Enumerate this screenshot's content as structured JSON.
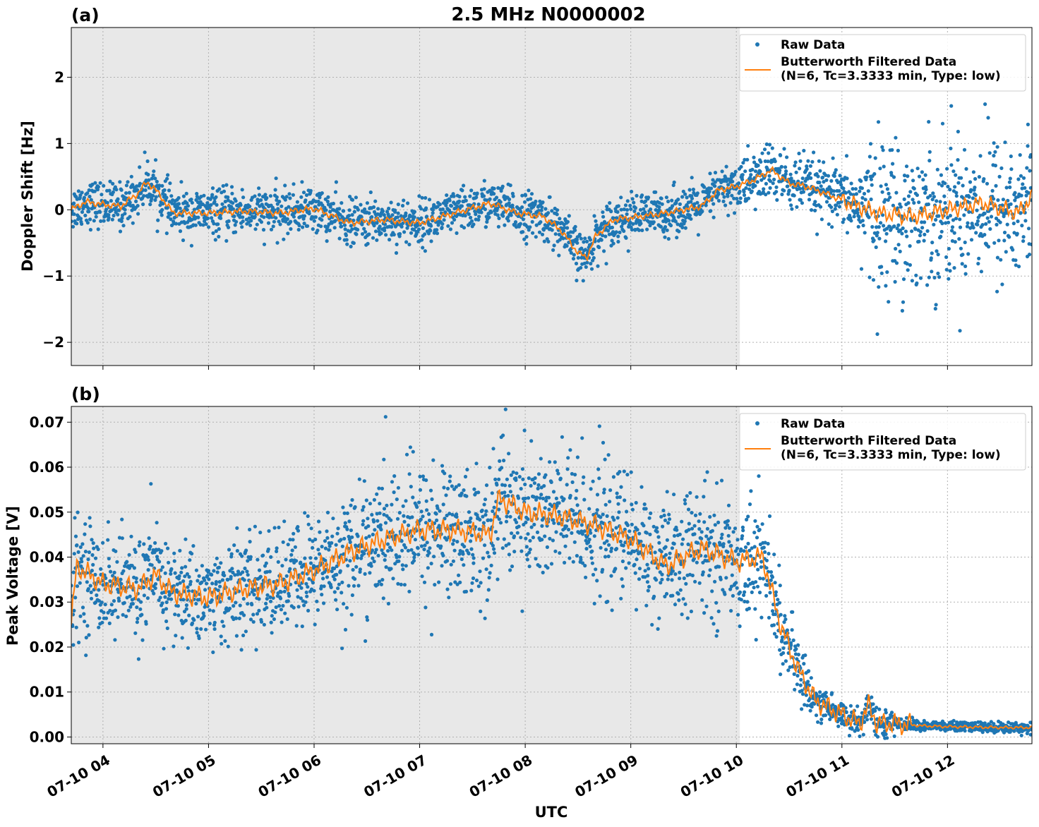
{
  "title": "2.5 MHz N0000002",
  "xlabel": "UTC",
  "colors": {
    "raw": "#1f77b4",
    "filtered": "#ff7f0e",
    "shade": "#e8e8e8",
    "grid": "#b0b0b0"
  },
  "chart_data": [
    {
      "type": "scatter",
      "panel": "(a)",
      "ylabel": "Doppler Shift [Hz]",
      "ylim": [
        -2.35,
        2.75
      ],
      "yticks": [
        2,
        1,
        0,
        -1,
        -2
      ],
      "ytick_labels": [
        "2",
        "1",
        "0",
        "−1",
        "−2"
      ],
      "xlim": [
        "07-10 03:42",
        "07-10 12:48"
      ],
      "xticks": [
        "07-10 04:00",
        "07-10 05:00",
        "07-10 06:00",
        "07-10 07:00",
        "07-10 08:00",
        "07-10 09:00",
        "07-10 10:00",
        "07-10 11:00",
        "07-10 12:00"
      ],
      "shaded_region": [
        "07-10 03:42",
        "07-10 10:02"
      ],
      "grid": true,
      "legend_position": "top-right",
      "legend": [
        {
          "label": "Raw Data",
          "kind": "marker"
        },
        {
          "label": "Butterworth Filtered Data",
          "label2": "(N=6, Tc=3.3333 min, Type: low)",
          "kind": "line"
        }
      ],
      "series": [
        {
          "name": "Butterworth Filtered Data",
          "x": [
            "07-10 03:42",
            "07-10 03:50",
            "07-10 04:00",
            "07-10 04:10",
            "07-10 04:20",
            "07-10 04:25",
            "07-10 04:30",
            "07-10 04:40",
            "07-10 05:00",
            "07-10 05:20",
            "07-10 05:40",
            "07-10 06:00",
            "07-10 06:20",
            "07-10 06:40",
            "07-10 07:00",
            "07-10 07:20",
            "07-10 07:40",
            "07-10 07:55",
            "07-10 08:10",
            "07-10 08:20",
            "07-10 08:30",
            "07-10 08:35",
            "07-10 08:40",
            "07-10 08:50",
            "07-10 09:00",
            "07-10 09:20",
            "07-10 09:40",
            "07-10 09:50",
            "07-10 10:00",
            "07-10 10:10",
            "07-10 10:20",
            "07-10 10:30",
            "07-10 10:40",
            "07-10 11:00",
            "07-10 11:20",
            "07-10 11:40",
            "07-10 12:00",
            "07-10 12:20",
            "07-10 12:40",
            "07-10 12:48"
          ],
          "y": [
            0.0,
            0.12,
            0.08,
            0.05,
            0.25,
            0.42,
            0.3,
            -0.05,
            -0.05,
            -0.02,
            -0.05,
            0.02,
            -0.2,
            -0.15,
            -0.2,
            -0.05,
            0.1,
            -0.05,
            -0.1,
            -0.3,
            -0.65,
            -0.72,
            -0.4,
            -0.15,
            -0.12,
            -0.05,
            0.05,
            0.3,
            0.35,
            0.45,
            0.6,
            0.4,
            0.35,
            0.15,
            -0.05,
            -0.1,
            0.0,
            0.1,
            -0.05,
            0.2
          ]
        }
      ]
    },
    {
      "type": "scatter",
      "panel": "(b)",
      "ylabel": "Peak Voltage [V]",
      "ylim": [
        -0.0015,
        0.0735
      ],
      "yticks": [
        0.07,
        0.06,
        0.05,
        0.04,
        0.03,
        0.02,
        0.01,
        0.0
      ],
      "ytick_labels": [
        "0.07",
        "0.06",
        "0.05",
        "0.04",
        "0.03",
        "0.02",
        "0.01",
        "0.00"
      ],
      "xlim": [
        "07-10 03:42",
        "07-10 12:48"
      ],
      "xticks": [
        "07-10 04:00",
        "07-10 05:00",
        "07-10 06:00",
        "07-10 07:00",
        "07-10 08:00",
        "07-10 09:00",
        "07-10 10:00",
        "07-10 11:00",
        "07-10 12:00"
      ],
      "xtick_labels": [
        "07-10 04",
        "07-10 05",
        "07-10 06",
        "07-10 07",
        "07-10 08",
        "07-10 09",
        "07-10 10",
        "07-10 11",
        "07-10 12"
      ],
      "shaded_region": [
        "07-10 03:42",
        "07-10 10:02"
      ],
      "grid": true,
      "legend_position": "top-right",
      "legend": [
        {
          "label": "Raw Data",
          "kind": "marker"
        },
        {
          "label": "Butterworth Filtered Data",
          "label2": "(N=6, Tc=3.3333 min, Type: low)",
          "kind": "line"
        }
      ],
      "series": [
        {
          "name": "Butterworth Filtered Data",
          "x": [
            "07-10 03:42",
            "07-10 03:45",
            "07-10 04:00",
            "07-10 04:20",
            "07-10 04:30",
            "07-10 04:40",
            "07-10 05:00",
            "07-10 05:20",
            "07-10 05:40",
            "07-10 06:00",
            "07-10 06:20",
            "07-10 06:40",
            "07-10 07:00",
            "07-10 07:20",
            "07-10 07:40",
            "07-10 07:45",
            "07-10 08:00",
            "07-10 08:20",
            "07-10 08:40",
            "07-10 09:00",
            "07-10 09:20",
            "07-10 09:40",
            "07-10 10:00",
            "07-10 10:15",
            "07-10 10:25",
            "07-10 10:35",
            "07-10 10:45",
            "07-10 11:00",
            "07-10 11:10",
            "07-10 11:15",
            "07-10 11:20",
            "07-10 11:30",
            "07-10 11:45",
            "07-10 12:00",
            "07-10 12:30",
            "07-10 12:48"
          ],
          "y": [
            0.025,
            0.038,
            0.034,
            0.033,
            0.036,
            0.032,
            0.031,
            0.033,
            0.034,
            0.037,
            0.041,
            0.044,
            0.046,
            0.046,
            0.045,
            0.053,
            0.05,
            0.049,
            0.047,
            0.044,
            0.038,
            0.042,
            0.039,
            0.04,
            0.025,
            0.015,
            0.008,
            0.005,
            0.003,
            0.007,
            0.003,
            0.003,
            0.0025,
            0.0023,
            0.0021,
            0.0021
          ]
        }
      ]
    }
  ]
}
